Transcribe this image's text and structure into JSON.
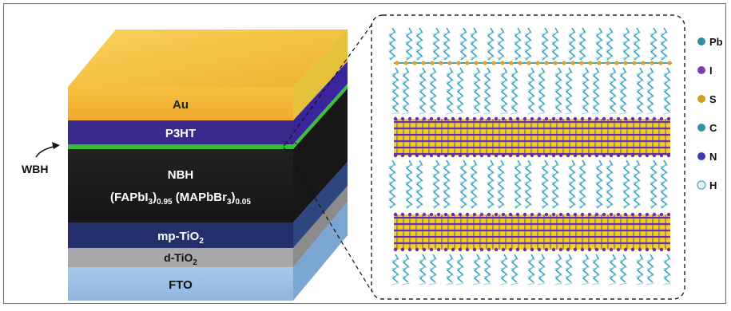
{
  "stack": {
    "layers": [
      {
        "id": "au",
        "label": "Au",
        "color": "#f4b43a",
        "side": "#e8c640",
        "text_color": "#222222"
      },
      {
        "id": "p3ht",
        "label": "P3HT",
        "color": "#3c2a8e",
        "side": "#3c28a0",
        "text_color": "#ffffff"
      },
      {
        "id": "wbh",
        "label": "",
        "color": "#36c23a",
        "side": "#36c23a"
      },
      {
        "id": "nbh",
        "label": "NBH",
        "color": "#1c1c1c",
        "side": "#161616",
        "text_color": "#ffffff"
      },
      {
        "id": "mp_tio2",
        "label": "mp-TiO",
        "sub": "2",
        "color": "#252f6e",
        "side": "#2a3f7c",
        "text_color": "#ffffff"
      },
      {
        "id": "d_tio2",
        "label": "d-TiO",
        "sub": "2",
        "color": "#a9a9a9",
        "side": "#8d8d8d",
        "text_color": "#111111"
      },
      {
        "id": "fto",
        "label": "FTO",
        "color": "#9cc0e4",
        "side": "#7aa6d4",
        "text_color": "#111111"
      }
    ],
    "nbh_formula": {
      "part1": "(FAPbI",
      "sub1": "3",
      "sub2": "0.95",
      "part2": " (MAPbBr",
      "sub3": "3",
      "sub4": "0.05"
    },
    "wbh_label": "WBH"
  },
  "legend": [
    {
      "symbol": "Pb",
      "color": "#2d8fa3"
    },
    {
      "symbol": "I",
      "color": "#7d3fb0"
    },
    {
      "symbol": "S",
      "color": "#d1a021"
    },
    {
      "symbol": "C",
      "color": "#2f95a8"
    },
    {
      "symbol": "N",
      "color": "#3e3ab2"
    },
    {
      "symbol": "H",
      "color": "#cfe7ef"
    }
  ],
  "colors": {
    "chain": "#3aa6bd",
    "inorganic_yellow": "#f2cf2b",
    "inorganic_purple": "#6a2fa8",
    "inorganic_blue": "#3a3db0",
    "sulfur": "#e0a02a"
  }
}
